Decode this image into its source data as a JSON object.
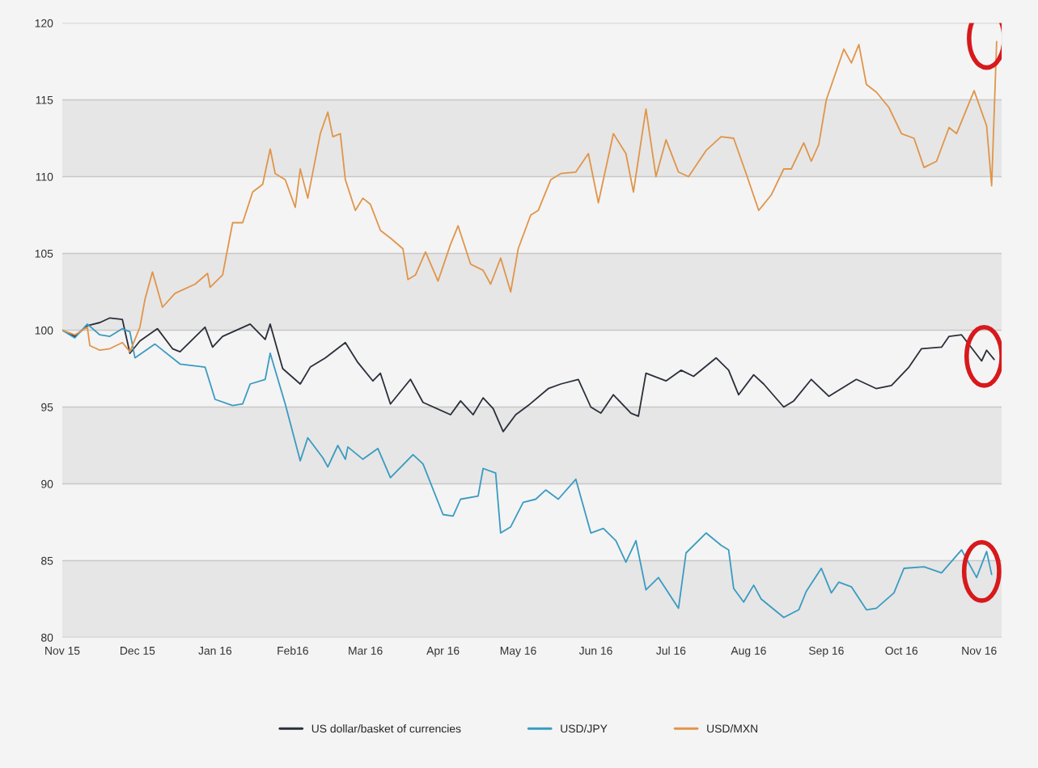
{
  "chart_data": {
    "type": "line",
    "ylim": [
      80,
      120
    ],
    "yticks": [
      80,
      85,
      90,
      95,
      100,
      105,
      110,
      115,
      120
    ],
    "xlim": [
      "2015-11-01",
      "2016-11-10"
    ],
    "xticks": [
      {
        "value": "2015-11-01",
        "label": "Nov 15"
      },
      {
        "value": "2015-12-01",
        "label": "Dec 15"
      },
      {
        "value": "2016-01-01",
        "label": "Jan 16"
      },
      {
        "value": "2016-02-01",
        "label": "Feb16"
      },
      {
        "value": "2016-03-01",
        "label": "Mar 16"
      },
      {
        "value": "2016-04-01",
        "label": "Apr 16"
      },
      {
        "value": "2016-05-01",
        "label": "May 16"
      },
      {
        "value": "2016-06-01",
        "label": "Jun 16"
      },
      {
        "value": "2016-07-01",
        "label": "Jul 16"
      },
      {
        "value": "2016-08-01",
        "label": "Aug 16"
      },
      {
        "value": "2016-09-01",
        "label": "Sep 16"
      },
      {
        "value": "2016-10-01",
        "label": "Oct 16"
      },
      {
        "value": "2016-11-01",
        "label": "Nov 16"
      }
    ],
    "grid": "y",
    "legend": "bottom",
    "bands": [
      {
        "axis": "y",
        "from": 80,
        "to": 85,
        "color": "#e6e6e6"
      },
      {
        "axis": "y",
        "from": 90,
        "to": 95,
        "color": "#e6e6e6"
      },
      {
        "axis": "y",
        "from": 100,
        "to": 105,
        "color": "#e6e6e6"
      },
      {
        "axis": "y",
        "from": 110,
        "to": 115,
        "color": "#e6e6e6"
      }
    ],
    "series": [
      {
        "name": "US dollar/basket of currencies",
        "color": "#2b2f3a",
        "x": [
          "2015-11-01",
          "2015-11-06",
          "2015-11-11",
          "2015-11-16",
          "2015-11-20",
          "2015-11-25",
          "2015-11-28",
          "2015-12-02",
          "2015-12-09",
          "2015-12-15",
          "2015-12-18",
          "2015-12-28",
          "2015-12-31",
          "2016-01-04",
          "2016-01-15",
          "2016-01-21",
          "2016-01-23",
          "2016-01-28",
          "2016-02-04",
          "2016-02-08",
          "2016-02-14",
          "2016-02-22",
          "2016-02-27",
          "2016-03-04",
          "2016-03-07",
          "2016-03-11",
          "2016-03-19",
          "2016-03-24",
          "2016-04-04",
          "2016-04-08",
          "2016-04-13",
          "2016-04-17",
          "2016-04-21",
          "2016-04-25",
          "2016-04-30",
          "2016-05-05",
          "2016-05-13",
          "2016-05-18",
          "2016-05-25",
          "2016-05-30",
          "2016-06-03",
          "2016-06-08",
          "2016-06-15",
          "2016-06-18",
          "2016-06-21",
          "2016-06-29",
          "2016-07-05",
          "2016-07-10",
          "2016-07-19",
          "2016-07-24",
          "2016-07-28",
          "2016-08-03",
          "2016-08-07",
          "2016-08-15",
          "2016-08-19",
          "2016-08-26",
          "2016-09-02",
          "2016-09-13",
          "2016-09-21",
          "2016-09-27",
          "2016-10-04",
          "2016-10-09",
          "2016-10-17",
          "2016-10-20",
          "2016-10-25",
          "2016-11-02",
          "2016-11-04",
          "2016-11-07"
        ],
        "values": [
          100,
          99.6,
          100.3,
          100.5,
          100.8,
          100.7,
          98.5,
          99.3,
          100.1,
          98.8,
          98.6,
          100.2,
          98.9,
          99.6,
          100.4,
          99.4,
          100.4,
          97.5,
          96.5,
          97.6,
          98.2,
          99.2,
          97.9,
          96.7,
          97.2,
          95.2,
          96.8,
          95.3,
          94.5,
          95.4,
          94.5,
          95.6,
          94.9,
          93.4,
          94.5,
          95.1,
          96.2,
          96.5,
          96.8,
          95.0,
          94.6,
          95.8,
          94.6,
          94.4,
          97.2,
          96.7,
          97.4,
          97.0,
          98.2,
          97.4,
          95.8,
          97.1,
          96.5,
          95.0,
          95.4,
          96.8,
          95.7,
          96.8,
          96.2,
          96.4,
          97.6,
          98.8,
          98.9,
          99.6,
          99.7,
          98.0,
          98.7,
          98.1
        ]
      },
      {
        "name": "USD/JPY",
        "color": "#3a9bc1",
        "x": [
          "2015-11-01",
          "2015-11-06",
          "2015-11-11",
          "2015-11-16",
          "2015-11-20",
          "2015-11-25",
          "2015-11-28",
          "2015-11-30",
          "2015-12-08",
          "2015-12-18",
          "2015-12-28",
          "2016-01-01",
          "2016-01-08",
          "2016-01-12",
          "2016-01-15",
          "2016-01-21",
          "2016-01-23",
          "2016-01-29",
          "2016-02-04",
          "2016-02-07",
          "2016-02-13",
          "2016-02-15",
          "2016-02-19",
          "2016-02-22",
          "2016-02-23",
          "2016-02-29",
          "2016-03-06",
          "2016-03-11",
          "2016-03-20",
          "2016-03-24",
          "2016-04-01",
          "2016-04-05",
          "2016-04-08",
          "2016-04-15",
          "2016-04-17",
          "2016-04-22",
          "2016-04-24",
          "2016-04-28",
          "2016-05-03",
          "2016-05-08",
          "2016-05-12",
          "2016-05-17",
          "2016-05-24",
          "2016-05-30",
          "2016-06-04",
          "2016-06-09",
          "2016-06-13",
          "2016-06-17",
          "2016-06-21",
          "2016-06-26",
          "2016-07-04",
          "2016-07-07",
          "2016-07-15",
          "2016-07-21",
          "2016-07-24",
          "2016-07-26",
          "2016-07-30",
          "2016-08-03",
          "2016-08-06",
          "2016-08-15",
          "2016-08-21",
          "2016-08-24",
          "2016-08-30",
          "2016-09-03",
          "2016-09-06",
          "2016-09-11",
          "2016-09-17",
          "2016-09-21",
          "2016-09-28",
          "2016-10-02",
          "2016-10-10",
          "2016-10-17",
          "2016-10-25",
          "2016-10-31",
          "2016-11-04",
          "2016-11-06"
        ],
        "values": [
          100,
          99.5,
          100.4,
          99.7,
          99.6,
          100.1,
          99.9,
          98.2,
          99.1,
          97.8,
          97.6,
          95.5,
          95.1,
          95.2,
          96.5,
          96.8,
          98.5,
          95.2,
          91.5,
          93,
          91.7,
          91.1,
          92.5,
          91.6,
          92.4,
          91.6,
          92.3,
          90.4,
          91.9,
          91.3,
          88.0,
          87.9,
          89.0,
          89.2,
          91,
          90.7,
          86.8,
          87.2,
          88.8,
          89.0,
          89.6,
          89.0,
          90.3,
          86.8,
          87.1,
          86.3,
          84.9,
          86.3,
          83.1,
          83.9,
          81.9,
          85.5,
          86.8,
          86.0,
          85.7,
          83.2,
          82.3,
          83.4,
          82.5,
          81.3,
          81.8,
          83.0,
          84.5,
          82.9,
          83.6,
          83.3,
          81.8,
          81.9,
          82.9,
          84.5,
          84.6,
          84.2,
          85.7,
          83.9,
          85.6,
          84.1
        ]
      },
      {
        "name": "USD/MXN",
        "color": "#e0954a",
        "x": [
          "2015-11-01",
          "2015-11-06",
          "2015-11-11",
          "2015-11-12",
          "2015-11-16",
          "2015-11-20",
          "2015-11-25",
          "2015-11-28",
          "2015-12-02",
          "2015-12-04",
          "2015-12-07",
          "2015-12-11",
          "2015-12-16",
          "2015-12-24",
          "2015-12-29",
          "2015-12-30",
          "2016-01-04",
          "2016-01-08",
          "2016-01-12",
          "2016-01-16",
          "2016-01-20",
          "2016-01-23",
          "2016-01-25",
          "2016-01-29",
          "2016-02-02",
          "2016-02-04",
          "2016-02-07",
          "2016-02-12",
          "2016-02-15",
          "2016-02-17",
          "2016-02-20",
          "2016-02-22",
          "2016-02-26",
          "2016-02-29",
          "2016-03-03",
          "2016-03-07",
          "2016-03-11",
          "2016-03-16",
          "2016-03-18",
          "2016-03-21",
          "2016-03-25",
          "2016-03-30",
          "2016-04-04",
          "2016-04-07",
          "2016-04-12",
          "2016-04-17",
          "2016-04-20",
          "2016-04-24",
          "2016-04-28",
          "2016-05-01",
          "2016-05-06",
          "2016-05-09",
          "2016-05-14",
          "2016-05-18",
          "2016-05-24",
          "2016-05-29",
          "2016-06-02",
          "2016-06-08",
          "2016-06-13",
          "2016-06-16",
          "2016-06-21",
          "2016-06-25",
          "2016-06-29",
          "2016-07-04",
          "2016-07-08",
          "2016-07-15",
          "2016-07-21",
          "2016-07-26",
          "2016-07-31",
          "2016-08-05",
          "2016-08-10",
          "2016-08-15",
          "2016-08-18",
          "2016-08-23",
          "2016-08-26",
          "2016-08-29",
          "2016-09-01",
          "2016-09-08",
          "2016-09-11",
          "2016-09-14",
          "2016-09-17",
          "2016-09-21",
          "2016-09-26",
          "2016-10-01",
          "2016-10-06",
          "2016-10-10",
          "2016-10-15",
          "2016-10-20",
          "2016-10-23",
          "2016-10-30",
          "2016-11-04",
          "2016-11-06",
          "2016-11-08"
        ],
        "values": [
          100,
          99.7,
          100.2,
          99.0,
          98.7,
          98.8,
          99.2,
          98.6,
          100.2,
          102,
          103.8,
          101.5,
          102.4,
          103,
          103.7,
          102.8,
          103.6,
          107,
          107,
          109,
          109.5,
          111.8,
          110.2,
          109.8,
          108,
          110.5,
          108.6,
          112.8,
          114.2,
          112.6,
          112.8,
          109.8,
          107.8,
          108.6,
          108.2,
          106.5,
          106,
          105.3,
          103.3,
          103.6,
          105.1,
          103.2,
          105.6,
          106.8,
          104.3,
          103.9,
          103,
          104.7,
          102.5,
          105.3,
          107.5,
          107.8,
          109.8,
          110.2,
          110.3,
          111.5,
          108.3,
          112.8,
          111.5,
          109,
          114.4,
          110,
          112.4,
          110.3,
          110,
          111.7,
          112.6,
          112.5,
          110.2,
          107.8,
          108.8,
          110.5,
          110.5,
          112.2,
          111,
          112.1,
          115,
          118.3,
          117.4,
          118.6,
          116,
          115.5,
          114.5,
          112.8,
          112.5,
          110.6,
          111,
          113.2,
          112.8,
          115.6,
          113.3,
          109.4,
          118.8
        ]
      }
    ]
  }
}
